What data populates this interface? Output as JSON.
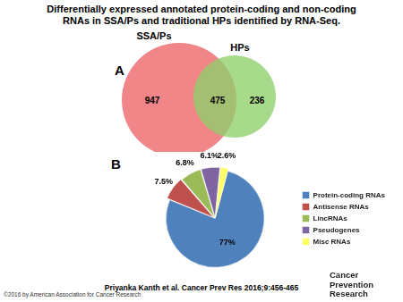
{
  "title": "Differentially expressed annotated protein-coding and non-coding RNAs in SSA/Ps and traditional HPs identified by RNA-Seq.",
  "chart_data": [
    {
      "type": "venn",
      "label": "A",
      "sets": [
        {
          "name": "SSA/Ps",
          "color": "#f08688"
        },
        {
          "name": "HPs",
          "color": "#8fd06c"
        }
      ],
      "regions": [
        {
          "sets": [
            "SSA/Ps"
          ],
          "value": 947
        },
        {
          "sets": [
            "SSA/Ps",
            "HPs"
          ],
          "value": 475
        },
        {
          "sets": [
            "HPs"
          ],
          "value": 236
        }
      ]
    },
    {
      "type": "pie",
      "label": "B",
      "categories": [
        "Protein-coding RNAs",
        "Antisense RNAs",
        "LincRNAs",
        "Pseudogenes",
        "Misc RNAs"
      ],
      "values": [
        77,
        7.5,
        6.8,
        6.1,
        2.6
      ],
      "value_labels": [
        "77%",
        "7.5%",
        "6.8%",
        "6.1%",
        "2.6%"
      ],
      "colors": [
        "#4f81bd",
        "#c0504d",
        "#9bbb59",
        "#8064a2",
        "#ffff66"
      ],
      "data_labels": true,
      "legend": "right"
    }
  ],
  "citation": "Priyanka Kanth et al. Cancer Prev Res 2016;9:456-465",
  "copyright": "©2016 by American Association for Cancer Research",
  "journal": [
    "Cancer",
    "Prevention Research"
  ]
}
